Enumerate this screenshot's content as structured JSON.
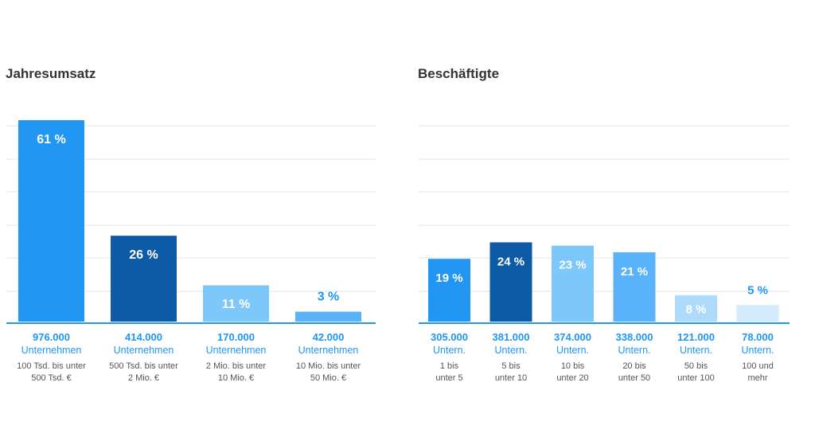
{
  "chart_data": [
    {
      "type": "bar",
      "title": "Jahresumsatz",
      "ylim": [
        0,
        61
      ],
      "grid": true,
      "categories": [
        {
          "percent_label": "61 %",
          "count": "976.000",
          "unit": "Unternehmen",
          "range_line1": "100 Tsd. bis unter",
          "range_line2": "500 Tsd. €"
        },
        {
          "percent_label": "26 %",
          "count": "414.000",
          "unit": "Unternehmen",
          "range_line1": "500 Tsd. bis unter",
          "range_line2": "2 Mio. €"
        },
        {
          "percent_label": "11 %",
          "count": "170.000",
          "unit": "Unternehmen",
          "range_line1": "2 Mio. bis unter",
          "range_line2": "10 Mio. €"
        },
        {
          "percent_label": "3 %",
          "count": "42.000",
          "unit": "Unternehmen",
          "range_line1": "10 Mio. bis unter",
          "range_line2": "50 Mio. €"
        }
      ],
      "values": [
        61,
        26,
        11,
        3
      ],
      "colors": [
        "#2196F3",
        "#0D5AA7",
        "#7DC8FA",
        "#5AB2F8"
      ]
    },
    {
      "type": "bar",
      "title": "Beschäftigte",
      "ylim": [
        0,
        61
      ],
      "grid": true,
      "categories": [
        {
          "percent_label": "19 %",
          "count": "305.000",
          "unit": "Untern.",
          "range_line1": "1 bis",
          "range_line2": "unter 5"
        },
        {
          "percent_label": "24 %",
          "count": "381.000",
          "unit": "Untern.",
          "range_line1": "5 bis",
          "range_line2": "unter 10"
        },
        {
          "percent_label": "23 %",
          "count": "374.000",
          "unit": "Untern.",
          "range_line1": "10 bis",
          "range_line2": "unter 20"
        },
        {
          "percent_label": "21 %",
          "count": "338.000",
          "unit": "Untern.",
          "range_line1": "20 bis",
          "range_line2": "unter 50"
        },
        {
          "percent_label": "8 %",
          "count": "121.000",
          "unit": "Untern.",
          "range_line1": "50 bis",
          "range_line2": "unter 100"
        },
        {
          "percent_label": "5 %",
          "count": "78.000",
          "unit": "Untern.",
          "range_line1": "100 und",
          "range_line2": "mehr"
        }
      ],
      "values": [
        19,
        24,
        23,
        21,
        8,
        5
      ],
      "colors": [
        "#2196F3",
        "#0D5AA7",
        "#7DC8FA",
        "#5AB2F8",
        "#AEDBFC",
        "#D2ECFD"
      ]
    }
  ]
}
